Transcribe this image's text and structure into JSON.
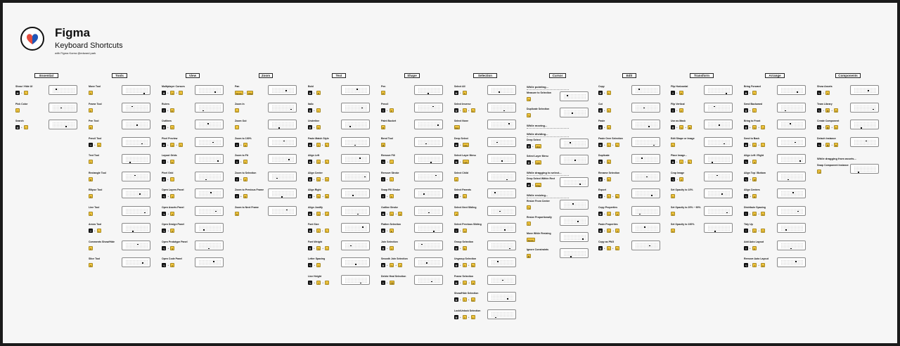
{
  "brand": {
    "title": "Figma",
    "subtitle": "Keyboard Shortcuts",
    "credit": "with Figma Korea   @edward park",
    "logo_icon": "figma-logo-heart-icon"
  },
  "colors": {
    "background": "#f6f6f6",
    "key": "#f2c53d",
    "key_dark": "#222222",
    "frame": "#1b1b1b"
  },
  "columns": [
    {
      "title": "Essential",
      "items": [
        {
          "name": "Show / Hide UI",
          "keys": [
            "⌘",
            "\\"
          ]
        },
        {
          "name": "Pick Color",
          "keys": [
            "I"
          ]
        },
        {
          "name": "Search",
          "keys": [
            "⌘",
            "/"
          ]
        }
      ]
    },
    {
      "title": "Tools",
      "items": [
        {
          "name": "Move Tool",
          "keys": [
            "V"
          ]
        },
        {
          "name": "Frame Tool",
          "keys": [
            "F"
          ]
        },
        {
          "name": "Pen Tool",
          "keys": [
            "P"
          ]
        },
        {
          "name": "Pencil Tool",
          "keys": [
            "⇧",
            "P"
          ]
        },
        {
          "name": "Text Tool",
          "keys": [
            "T"
          ]
        },
        {
          "name": "Rectangle Tool",
          "keys": [
            "R"
          ]
        },
        {
          "name": "Ellipse Tool",
          "keys": [
            "O"
          ]
        },
        {
          "name": "Line Tool",
          "keys": [
            "L"
          ]
        },
        {
          "name": "Arrow Tool",
          "keys": [
            "⇧",
            "L"
          ]
        },
        {
          "name": "Comments Show/Hide",
          "keys": [
            "C"
          ]
        },
        {
          "name": "Slice Tool",
          "keys": [
            "S"
          ]
        }
      ]
    },
    {
      "title": "View",
      "items": [
        {
          "name": "Multiplayer Cursors",
          "keys": [
            "⌘",
            "⌥",
            "\\"
          ]
        },
        {
          "name": "Rulers",
          "keys": [
            "⇧",
            "R"
          ]
        },
        {
          "name": "Outlines",
          "keys": [
            "⌘",
            "Y"
          ]
        },
        {
          "name": "Pixel Preview",
          "keys": [
            "⌘",
            "⌥",
            "Y"
          ]
        },
        {
          "name": "Layout Grids",
          "keys": [
            "⌃",
            "G"
          ]
        },
        {
          "name": "Pixel Grid",
          "keys": [
            "⌘",
            "'"
          ]
        },
        {
          "name": "Open Layers Panel",
          "keys": [
            "⌥",
            "1"
          ]
        },
        {
          "name": "Open Assets Panel",
          "keys": [
            "⌥",
            "2"
          ]
        },
        {
          "name": "Open Design Panel",
          "keys": [
            "⌥",
            "8"
          ]
        },
        {
          "name": "Open Prototype Panel",
          "keys": [
            "⌥",
            "9"
          ]
        },
        {
          "name": "Open Code Panel",
          "keys": [
            "⌥",
            "0"
          ]
        }
      ]
    },
    {
      "title": "Zoom",
      "items": [
        {
          "name": "Pan",
          "keys": [
            "Space",
            "drag"
          ]
        },
        {
          "name": "Zoom In",
          "keys": [
            "+"
          ]
        },
        {
          "name": "Zoom Out",
          "keys": [
            "-"
          ]
        },
        {
          "name": "Zoom to 100%",
          "keys": [
            "⇧",
            "0"
          ]
        },
        {
          "name": "Zoom to Fit",
          "keys": [
            "⇧",
            "1"
          ]
        },
        {
          "name": "Zoom to Selection",
          "keys": [
            "⇧",
            "2"
          ]
        },
        {
          "name": "Zoom to Previous Frame",
          "keys": [
            "⇧",
            "N"
          ]
        },
        {
          "name": "Zoom to Next Frame",
          "keys": [
            "N"
          ]
        }
      ]
    },
    {
      "title": "Text",
      "items": [
        {
          "name": "Bold",
          "keys": [
            "⌘",
            "B"
          ]
        },
        {
          "name": "Italic",
          "keys": [
            "⌘",
            "I"
          ]
        },
        {
          "name": "Underline",
          "keys": [
            "⌘",
            "U"
          ]
        },
        {
          "name": "Paste Match Style",
          "keys": [
            "⌘",
            "⇧",
            "V"
          ]
        },
        {
          "name": "Align Left",
          "keys": [
            "⌘",
            "⌥",
            "L"
          ]
        },
        {
          "name": "Align Center",
          "keys": [
            "⌘",
            "⌥",
            "T"
          ]
        },
        {
          "name": "Align Right",
          "keys": [
            "⌘",
            "⌥",
            "R"
          ]
        },
        {
          "name": "Align Justify",
          "keys": [
            "⌘",
            "⌥",
            "J"
          ]
        },
        {
          "name": "Font Size",
          "keys": [
            "⌘",
            "⇧",
            ">"
          ]
        },
        {
          "name": "Font Weight",
          "keys": [
            "⌘",
            "⌥",
            ">"
          ]
        },
        {
          "name": "Letter Spacing",
          "keys": [
            "⌥",
            ">"
          ]
        },
        {
          "name": "Line Height",
          "keys": [
            "⌥",
            "⇧",
            ">"
          ]
        }
      ]
    },
    {
      "title": "Shape",
      "items": [
        {
          "name": "Pen",
          "keys": [
            "P"
          ]
        },
        {
          "name": "Pencil",
          "keys": [
            "⇧",
            "P"
          ]
        },
        {
          "name": "Paint Bucket",
          "keys": [
            "B"
          ]
        },
        {
          "name": "Bend Tool",
          "keys": [
            "⌘"
          ]
        },
        {
          "name": "Remove Fill",
          "keys": [
            "⌥",
            "/"
          ]
        },
        {
          "name": "Remove Stroke",
          "keys": [
            "⇧",
            "/"
          ]
        },
        {
          "name": "Swap Fill Stroke",
          "keys": [
            "⇧",
            "X"
          ]
        },
        {
          "name": "Outline Stroke",
          "keys": [
            "⌘",
            "⌥",
            "O"
          ]
        },
        {
          "name": "Flatten Selection",
          "keys": [
            "⌘",
            "E"
          ]
        },
        {
          "name": "Join Selection",
          "keys": [
            "⌘",
            "J"
          ]
        },
        {
          "name": "Smooth Join Selection",
          "keys": [
            "⌘",
            "⌥",
            "J"
          ]
        },
        {
          "name": "Delete Heal Selection",
          "keys": [
            "⇧",
            "⌫"
          ]
        }
      ]
    },
    {
      "title": "Selection",
      "items": [
        {
          "name": "Select All",
          "keys": [
            "⌘",
            "A"
          ]
        },
        {
          "name": "Select Inverse",
          "keys": [
            "⌘",
            "⇧",
            "A"
          ]
        },
        {
          "name": "Select None",
          "keys": [
            "Esc"
          ]
        },
        {
          "name": "Deep Select",
          "keys": [
            "⌘",
            "click"
          ]
        },
        {
          "name": "Select Layer Menu",
          "keys": [
            "⌘",
            "right"
          ]
        },
        {
          "name": "Select Child",
          "keys": [
            "↵"
          ]
        },
        {
          "name": "Select Parents",
          "keys": [
            "⇧",
            "↵"
          ]
        },
        {
          "name": "Select Next Sibling",
          "keys": [
            "⇥"
          ]
        },
        {
          "name": "Select Previous Sibling",
          "keys": [
            "⇧",
            "⇥"
          ]
        },
        {
          "name": "Group Selection",
          "keys": [
            "⌘",
            "G"
          ]
        },
        {
          "name": "Ungroup Selection",
          "keys": [
            "⌘",
            "⇧",
            "G"
          ]
        },
        {
          "name": "Frame Selection",
          "keys": [
            "⌘",
            "⌥",
            "G"
          ]
        },
        {
          "name": "Show/Hide Selection",
          "keys": [
            "⌘",
            "⇧",
            "H"
          ]
        },
        {
          "name": "Lock/Unlock Selection",
          "keys": [
            "⌘",
            "⇧",
            "L"
          ]
        }
      ]
    },
    {
      "title": "Cursor",
      "items": []
    },
    {
      "title": "Edit",
      "items": [
        {
          "name": "Copy",
          "keys": [
            "⌘",
            "C"
          ]
        },
        {
          "name": "Cut",
          "keys": [
            "⌘",
            "X"
          ]
        },
        {
          "name": "Paste",
          "keys": [
            "⌘",
            "V"
          ]
        },
        {
          "name": "Paste Over Selection",
          "keys": [
            "⌘",
            "⇧",
            "V"
          ]
        },
        {
          "name": "Duplicate",
          "keys": [
            "⌘",
            "D"
          ]
        },
        {
          "name": "Rename Selection",
          "keys": [
            "⌘",
            "R"
          ]
        },
        {
          "name": "Export",
          "keys": [
            "⌘",
            "⇧",
            "E"
          ]
        },
        {
          "name": "Copy Properties",
          "keys": [
            "⌘",
            "⌥",
            "C"
          ]
        },
        {
          "name": "Paste Properties",
          "keys": [
            "⌘",
            "⌥",
            "V"
          ]
        },
        {
          "name": "Copy as PNG",
          "keys": [
            "⌘",
            "⇧",
            "C"
          ]
        }
      ]
    },
    {
      "title": "Transform",
      "items": [
        {
          "name": "Flip Horizontal",
          "keys": [
            "⇧",
            "H"
          ]
        },
        {
          "name": "Flip Vertical",
          "keys": [
            "⇧",
            "V"
          ]
        },
        {
          "name": "Use as Mask",
          "keys": [
            "⌘",
            "⌥",
            "M"
          ]
        },
        {
          "name": "Edit Shape or Image",
          "keys": [
            "↵"
          ]
        },
        {
          "name": "Place Image...",
          "keys": [
            "⌘",
            "⇧",
            "K"
          ]
        },
        {
          "name": "Crop Image",
          "keys": [
            "⌥",
            "2"
          ]
        },
        {
          "name": "Set Opacity to 10%",
          "keys": [
            "1"
          ]
        },
        {
          "name": "Set Opacity to 20% ~ 90%",
          "keys": [
            "2"
          ]
        },
        {
          "name": "Set Opacity to 100%",
          "keys": [
            "0"
          ]
        }
      ]
    },
    {
      "title": "Arrange",
      "items": [
        {
          "name": "Bring Forward",
          "keys": [
            "⌘",
            "]"
          ]
        },
        {
          "name": "Send Backward",
          "keys": [
            "⌘",
            "["
          ]
        },
        {
          "name": "Bring to Front",
          "keys": [
            "⌘",
            "⌥",
            "]"
          ]
        },
        {
          "name": "Send to Back",
          "keys": [
            "⌘",
            "⌥",
            "["
          ]
        },
        {
          "name": "Align Left / Right",
          "keys": [
            "⌥",
            "A"
          ]
        },
        {
          "name": "Align Top / Bottom",
          "keys": [
            "⌥",
            "W"
          ]
        },
        {
          "name": "Align Centers",
          "keys": [
            "⌥",
            "H"
          ]
        },
        {
          "name": "Distribute Spacing",
          "keys": [
            "⌃",
            "⌥",
            "V"
          ]
        },
        {
          "name": "Tidy Up",
          "keys": [
            "⌃",
            "⌥",
            "T"
          ]
        },
        {
          "name": "Add Auto Layout",
          "keys": [
            "⇧",
            "A"
          ]
        },
        {
          "name": "Remove Auto Layout",
          "keys": [
            "⌥",
            "⇧",
            "A"
          ]
        }
      ]
    },
    {
      "title": "Components",
      "items": [
        {
          "name": "Show Assets",
          "keys": [
            "⌥",
            "2"
          ]
        },
        {
          "name": "Team Library",
          "keys": [
            "⌥",
            "⌘",
            "O"
          ]
        },
        {
          "name": "Create Component",
          "keys": [
            "⌥",
            "⌘",
            "K"
          ]
        },
        {
          "name": "Detach Instance",
          "keys": [
            "⌥",
            "⌘",
            "B"
          ]
        }
      ]
    }
  ],
  "cursor_notes": [
    {
      "heading": "While pointing...",
      "items": [
        {
          "name": "Measure to Selection",
          "keys": [
            "⌥"
          ]
        },
        {
          "name": "Duplicate Selection",
          "keys": [
            "⌥"
          ]
        }
      ]
    },
    {
      "heading": "While moving...",
      "items": []
    },
    {
      "heading": "While dividing...",
      "items": [
        {
          "name": "Deep Select",
          "keys": [
            "⌘",
            "click"
          ]
        },
        {
          "name": "Select Layer Menu",
          "keys": [
            "⌘",
            "right"
          ]
        }
      ]
    },
    {
      "heading": "While dragging to select...",
      "items": [
        {
          "name": "Deep Select Within Rect",
          "keys": [
            "⌘",
            "drag"
          ]
        }
      ]
    },
    {
      "heading": "While resizing...",
      "items": [
        {
          "name": "Resize From Center",
          "keys": [
            "⌥"
          ]
        },
        {
          "name": "Resize Proportionally",
          "keys": [
            "⇧"
          ]
        },
        {
          "name": "Move While Resizing",
          "keys": [
            "Space"
          ]
        },
        {
          "name": "Ignore Constraints",
          "keys": [
            "⌘"
          ]
        }
      ]
    }
  ],
  "components_note": {
    "heading": "While dragging from assets...",
    "item": {
      "name": "Swap Component Instance",
      "keys": [
        "⌥"
      ]
    }
  }
}
